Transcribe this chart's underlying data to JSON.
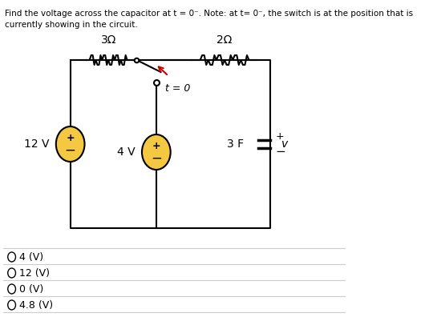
{
  "title_line1": "Find the voltage across the capacitor at t = 0⁻. Note: at t= 0⁻, the switch is at the position that is",
  "title_line2": "currently showing in the circuit.",
  "options": [
    "4 (V)",
    "12 (V)",
    "0 (V)",
    "4.8 (V)"
  ],
  "bg_color": "#ffffff",
  "text_color": "#000000",
  "circuit_box_color": "#000000",
  "resistor_color": "#000000",
  "source_fill": "#f5c842",
  "source_border": "#000000",
  "capacitor_color": "#000000",
  "switch_color": "#000000",
  "arrow_color": "#cc0000",
  "label_3ohm": "3Ω",
  "label_2ohm": "2Ω",
  "label_12V": "12 V",
  "label_4V": "4 V",
  "label_3F": "3 F",
  "label_v": "v",
  "label_t0": "t = 0",
  "label_plus": "+",
  "label_minus": "−"
}
